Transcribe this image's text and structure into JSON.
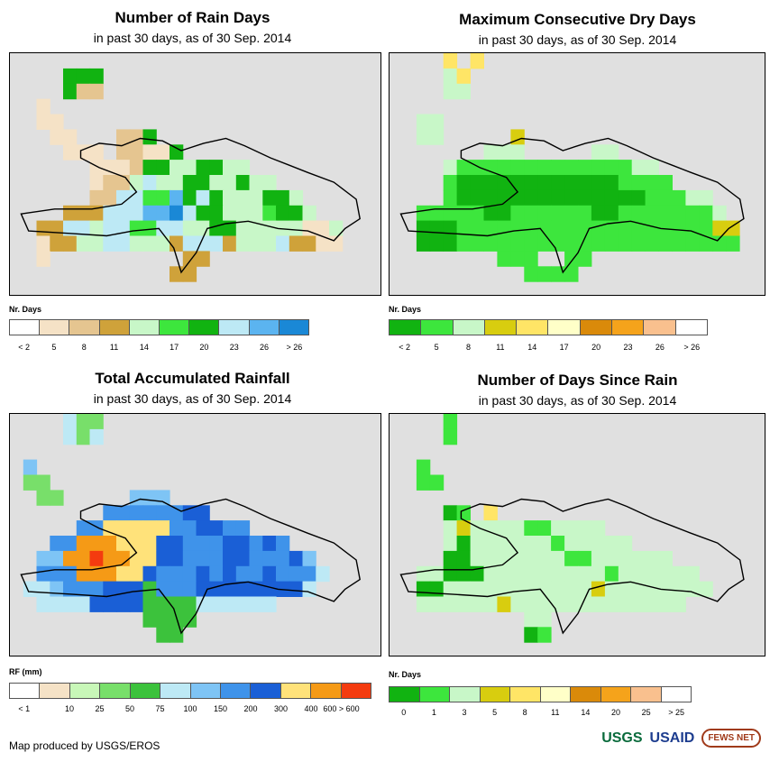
{
  "colors": {
    "map_bg": "#e0e0e0",
    "coast": "#000000",
    "rain_days": [
      "#ffffff",
      "#f5e2c6",
      "#e5c590",
      "#cfa23a",
      "#c8f7c8",
      "#3de63d",
      "#11b311",
      "#bde9f5",
      "#5bb4f0",
      "#1a88d6"
    ],
    "dry_days": [
      "#11b311",
      "#3de63d",
      "#c8f7c8",
      "#d8cd0f",
      "#ffe566",
      "#ffffc8",
      "#da8a0a",
      "#f5a31b",
      "#f9c08e",
      "#ffffff"
    ],
    "rainfall": [
      "#ffffff",
      "#f5e2c6",
      "#c8f7b8",
      "#78df6a",
      "#3cc23c",
      "#bde9f5",
      "#7ec4f5",
      "#3f93ea",
      "#1a5fd6",
      "#ffe27a",
      "#f59a16",
      "#f43b0f"
    ],
    "since_rain": [
      "#11b311",
      "#3de63d",
      "#c8f7c8",
      "#d8cd0f",
      "#ffe566",
      "#ffffc8",
      "#da8a0a",
      "#f5a31b",
      "#f9c08e",
      "#ffffff"
    ]
  },
  "panels": [
    {
      "id": "rain_days",
      "title": "Number of Rain Days",
      "subtitle": "in past 30 days, as of 30 Sep. 2014",
      "legend_title": "Nr. Days",
      "legend_labels": [
        "< 2",
        "5",
        "8",
        "11",
        "14",
        "17",
        "20",
        "23",
        "26",
        "> 26"
      ],
      "palette": "rain_days",
      "grid": [
        "............................",
        "....GGG.....................",
        "....GCC.....................",
        "..B.........................",
        "..BB........................",
        "...BB...CCG..................",
        "....BBB.CCBBG...............",
        "......BBBCGGEEGGEE..........",
        "......BCCEHEEGGEEGEE........",
        "......CCHHFFIGHGEEEGGE......",
        "....DDDHHHIIJHGGEEEFGGE.....",
        "..DDHHEHHFFHHEEGGEEEEEBBE...",
        "..BDDEEHHEEEDHHHDEEEHDDBB...",
        "..B..........DD.............",
        "............DD..............",
        "............................"
      ]
    },
    {
      "id": "max_dry",
      "title": "Maximum Consecutive Dry Days",
      "subtitle": "in past 30 days, as of 30 Sep. 2014",
      "legend_title": "Nr. Days",
      "legend_labels": [
        "< 2",
        "5",
        "8",
        "11",
        "14",
        "17",
        "20",
        "23",
        "26",
        "> 26"
      ],
      "palette": "dry_days",
      "grid": [
        "....E.E.....................",
        "....CE......................",
        "....CC......................",
        "............................",
        "..CC........................",
        "..CC.....D..................",
        ".......CCC.....CC...........",
        "....CBBBBBBBBBBBBBCC.........",
        "....BAAAAAAAAAAAABBBB.......",
        "....BAAAAAAAAAAAAAABBBCC....",
        "..BBBBBAABBBBBBAABBBBBBBC...",
        "..AAABBBBBBBBBBBBBBBBBBBDD..",
        "..AAABBBBBBBBBBBBBBBBBBBBB..",
        "........BBB..BB.............",
        "..........BBBB..............",
        "............................"
      ]
    },
    {
      "id": "total_rf",
      "title": "Total Accumulated Rainfall",
      "subtitle": "in past 30 days, as of 30 Sep. 2014",
      "legend_title": "RF (mm)",
      "legend_labels": [
        "< 1",
        "10",
        "25",
        "50",
        "75",
        "100",
        "150",
        "200",
        "300",
        "400",
        "600 > 600"
      ],
      "palette": "rainfall",
      "grid": [
        "....FDD.....................",
        "....FDF.....................",
        "............................",
        ".G..........................",
        ".DD.........................",
        "..DD.....GGG................",
        ".......HHHHHHII.............",
        ".....HHJJJJJHHIIHH...........",
        "...HHKKKJJJIIHHHIIHIH.......",
        "..GGKKLKKJJIIHHHIIHHHIG.....",
        "..HHHKKKJJIHHHIHIHHIHHHF....",
        ".FFGHHHIIIEHHHIIIIIIIIF.....",
        "..FFFFIIIIEEEEFFFFFF........",
        "..........EEEE...............",
        "...........EE................",
        "............................"
      ]
    },
    {
      "id": "since_rain",
      "title": "Number of Days Since Rain",
      "subtitle": "in past 30 days, as of 30 Sep. 2014",
      "legend_title": "Nr. Days",
      "legend_labels": [
        "0",
        "1",
        "3",
        "5",
        "8",
        "11",
        "14",
        "20",
        "25",
        "> 25"
      ],
      "palette": "since_rain",
      "grid": [
        "....B.......................",
        "....B.......................",
        "............................",
        "..B.........................",
        "..BB........................",
        "............................",
        "....AB.E.....................",
        "....CDCCCCBBCCCC............",
        "....CACCCCCCBCCCCC..........",
        "....AACCCCCCCBBCCCCCC.......",
        "..CCAAACCCCCCCCCBCCCCCC.....",
        "..AACCCCCCCCCCCDCCCCCCCC....",
        "..CCCCCCDCCCCCCCCCCCCC......",
        "..........CC................",
        "..........AB................",
        "............................"
      ]
    }
  ],
  "footer": {
    "credit": "Map produced by USGS/EROS"
  },
  "logos": {
    "usgs": "USGS",
    "usaid": "USAID",
    "fews": "FEWS NET"
  }
}
